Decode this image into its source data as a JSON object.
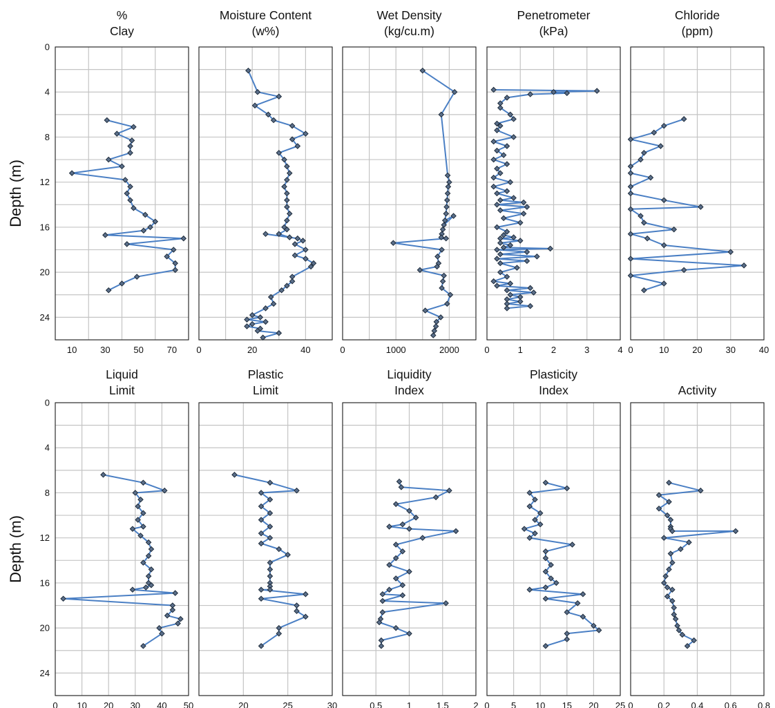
{
  "colors": {
    "series": "#4a7fc4",
    "marker": "#5b6f8a",
    "grid": "#c4c4c4",
    "frame": "#222222"
  },
  "chart_data": [
    {
      "type": "line",
      "title_lines": [
        "%",
        "Clay"
      ],
      "ylabel": "Depth (m)",
      "ylim": [
        0,
        26
      ],
      "yticks": [
        0,
        4,
        8,
        12,
        16,
        20,
        24
      ],
      "invert_y": true,
      "xlim": [
        0,
        80
      ],
      "xgrid": [
        0,
        20,
        40,
        60,
        80
      ],
      "xticklabels": [
        10,
        30,
        50,
        70
      ],
      "x": [
        31,
        47,
        37,
        46,
        45,
        45,
        32,
        40,
        10,
        42,
        45,
        43,
        45,
        47,
        54,
        60,
        57,
        53,
        30,
        77,
        43,
        71,
        67,
        72,
        72,
        49,
        40,
        32
      ],
      "y": [
        6.5,
        7.1,
        7.7,
        8.3,
        8.8,
        9.4,
        10.0,
        10.6,
        11.2,
        11.8,
        12.4,
        13.0,
        13.6,
        14.3,
        14.9,
        15.5,
        16.0,
        16.3,
        16.7,
        17.0,
        17.5,
        18.0,
        18.6,
        19.2,
        19.8,
        20.4,
        21.0,
        21.6
      ]
    },
    {
      "type": "line",
      "title_lines": [
        "Moisture Content",
        "(w%)"
      ],
      "ylabel": "Depth (m)",
      "ylim": [
        0,
        26
      ],
      "yticks": [
        0,
        4,
        8,
        12,
        16,
        20,
        24
      ],
      "invert_y": true,
      "xlim": [
        0,
        50
      ],
      "xgrid": [
        0,
        10,
        20,
        30,
        40,
        50
      ],
      "xticklabels": [
        0,
        20,
        40
      ],
      "x": [
        18.5,
        22,
        30,
        21,
        26,
        28,
        35,
        40,
        35,
        37,
        30,
        32,
        33,
        34,
        33,
        32,
        33,
        33,
        33,
        34,
        33,
        32,
        33,
        30,
        34,
        25,
        37,
        39,
        36,
        40,
        36,
        40,
        43,
        42,
        35,
        35,
        33,
        31,
        27,
        28,
        25,
        20,
        23,
        18,
        25,
        20,
        18,
        23,
        22,
        30,
        24
      ],
      "y": [
        2.1,
        4.0,
        4.4,
        5.2,
        6.0,
        6.5,
        7.0,
        7.7,
        8.2,
        8.8,
        9.4,
        10.0,
        10.6,
        11.2,
        11.8,
        12.4,
        13.0,
        13.6,
        14.2,
        14.8,
        15.4,
        16.0,
        16.2,
        16.6,
        16.9,
        16.6,
        17.0,
        17.2,
        17.5,
        18.0,
        18.5,
        18.8,
        19.2,
        19.5,
        20.4,
        20.8,
        21.2,
        21.6,
        22.2,
        22.8,
        23.2,
        23.8,
        24.0,
        24.2,
        24.4,
        24.6,
        24.8,
        25.0,
        25.2,
        25.4,
        25.8
      ]
    },
    {
      "type": "line",
      "title_lines": [
        "Wet Density",
        "(kg/cu.m)"
      ],
      "ylabel": "Depth (m)",
      "ylim": [
        0,
        26
      ],
      "yticks": [
        0,
        4,
        8,
        12,
        16,
        20,
        24
      ],
      "invert_y": true,
      "xlim": [
        0,
        2500
      ],
      "xgrid": [
        0,
        500,
        1000,
        1500,
        2000,
        2500
      ],
      "xticklabels": [
        0,
        1000,
        2000
      ],
      "x": [
        1500,
        2100,
        1850,
        1970,
        2000,
        1980,
        1970,
        1960,
        1950,
        1940,
        1920,
        2080,
        1900,
        1880,
        1860,
        1850,
        1940,
        950,
        1860,
        1780,
        1800,
        1770,
        1450,
        1900,
        1880,
        1860,
        2020,
        1960,
        1550,
        1840,
        1760,
        1750,
        1720,
        1700
      ],
      "y": [
        2.1,
        4.0,
        6.0,
        11.4,
        12.0,
        12.4,
        13.0,
        13.6,
        14.2,
        14.8,
        15.4,
        15.0,
        15.8,
        16.2,
        16.6,
        16.9,
        17.0,
        17.4,
        18.0,
        18.6,
        19.2,
        19.5,
        19.8,
        20.3,
        20.8,
        21.4,
        22.0,
        22.8,
        23.4,
        24.0,
        24.4,
        24.8,
        25.2,
        25.6
      ]
    },
    {
      "type": "line",
      "title_lines": [
        "Penetrometer",
        "(kPa)"
      ],
      "ylabel": "Depth (m)",
      "ylim": [
        0,
        26
      ],
      "yticks": [
        0,
        4,
        8,
        12,
        16,
        20,
        24
      ],
      "invert_y": true,
      "xlim": [
        0,
        4
      ],
      "xgrid": [
        0,
        1,
        2,
        3,
        4
      ],
      "xticklabels": [
        0,
        1,
        2,
        3,
        4
      ],
      "x": [
        0.2,
        3.3,
        2.0,
        2.4,
        1.3,
        0.6,
        0.4,
        0.4,
        0.7,
        0.8,
        0.3,
        0.4,
        0.3,
        0.8,
        0.2,
        0.6,
        0.3,
        0.5,
        0.2,
        0.6,
        0.3,
        0.4,
        0.2,
        0.7,
        0.2,
        0.6,
        0.3,
        0.8,
        0.4,
        1.1,
        0.3,
        1.2,
        0.4,
        1.1,
        0.5,
        1.0,
        0.3,
        0.6,
        0.5,
        0.8,
        0.4,
        1.0,
        0.4,
        0.7,
        0.5,
        1.9,
        0.3,
        1.2,
        0.4,
        1.5,
        0.3,
        1.2,
        0.4,
        0.9,
        0.4,
        0.6,
        0.2,
        0.7,
        0.3,
        1.3,
        0.6,
        1.4,
        0.7,
        1.0,
        0.6,
        1.0,
        0.6,
        1.3,
        0.6
      ],
      "y": [
        3.8,
        3.9,
        4.0,
        4.1,
        4.2,
        4.5,
        5.0,
        5.4,
        6.0,
        6.4,
        6.8,
        7.0,
        7.4,
        8.0,
        8.4,
        8.8,
        9.2,
        9.6,
        10.0,
        10.4,
        10.8,
        11.2,
        11.6,
        12.0,
        12.4,
        12.8,
        13.0,
        13.4,
        13.6,
        13.8,
        14.0,
        14.2,
        14.5,
        14.8,
        15.2,
        15.6,
        16.0,
        16.4,
        16.7,
        16.9,
        17.0,
        17.2,
        17.4,
        17.6,
        17.8,
        17.9,
        18.0,
        18.2,
        18.4,
        18.6,
        18.8,
        19.0,
        19.2,
        19.6,
        20.0,
        20.4,
        20.8,
        21.0,
        21.2,
        21.4,
        21.6,
        21.8,
        22.0,
        22.2,
        22.4,
        22.6,
        22.8,
        23.0,
        23.2
      ]
    },
    {
      "type": "line",
      "title_lines": [
        "Chloride",
        "(ppm)"
      ],
      "ylabel": "Depth (m)",
      "ylim": [
        0,
        26
      ],
      "yticks": [
        0,
        4,
        8,
        12,
        16,
        20,
        24
      ],
      "invert_y": true,
      "xlim": [
        0,
        40
      ],
      "xgrid": [
        0,
        10,
        20,
        30,
        40
      ],
      "xticklabels": [
        0,
        10,
        20,
        30,
        40
      ],
      "x": [
        16,
        10,
        7,
        0,
        9,
        4,
        3,
        0,
        0,
        6,
        0,
        0,
        10,
        21,
        0,
        3,
        4,
        13,
        0,
        5,
        10,
        30,
        0,
        34,
        16,
        0,
        10,
        4
      ],
      "y": [
        6.4,
        7.0,
        7.6,
        8.2,
        8.8,
        9.4,
        10.0,
        10.6,
        11.2,
        11.6,
        12.4,
        13.0,
        13.6,
        14.2,
        14.4,
        15.0,
        15.6,
        16.2,
        16.6,
        17.0,
        17.6,
        18.2,
        18.8,
        19.4,
        19.8,
        20.3,
        21.0,
        21.6
      ]
    },
    {
      "type": "line",
      "title_lines": [
        "Liquid",
        "Limit"
      ],
      "ylabel": "Depth (m)",
      "ylim": [
        0,
        26
      ],
      "yticks": [
        0,
        4,
        8,
        12,
        16,
        20,
        24
      ],
      "invert_y": true,
      "xlim": [
        0,
        50
      ],
      "xgrid": [
        0,
        10,
        20,
        30,
        40,
        50
      ],
      "xticklabels": [
        0,
        10,
        20,
        30,
        40,
        50
      ],
      "x": [
        18,
        33,
        41,
        30,
        32,
        31,
        33,
        31,
        33,
        29,
        32,
        35,
        36,
        35,
        33,
        36,
        35,
        35,
        36,
        34,
        29,
        45,
        3,
        44,
        44,
        42,
        47,
        46,
        39,
        40,
        33
      ],
      "y": [
        6.4,
        7.1,
        7.8,
        8.0,
        8.6,
        9.2,
        9.8,
        10.4,
        11.0,
        11.2,
        11.8,
        12.4,
        13.0,
        13.6,
        14.2,
        14.8,
        15.4,
        16.0,
        16.2,
        16.4,
        16.6,
        16.9,
        17.4,
        18.0,
        18.4,
        18.9,
        19.2,
        19.6,
        20.0,
        20.5,
        21.6
      ]
    },
    {
      "type": "line",
      "title_lines": [
        "Plastic",
        "Limit"
      ],
      "ylabel": "Depth (m)",
      "ylim": [
        0,
        26
      ],
      "yticks": [
        0,
        4,
        8,
        12,
        16,
        20,
        24
      ],
      "invert_y": true,
      "xlim": [
        15,
        30
      ],
      "xgrid": [
        15,
        20,
        25,
        30
      ],
      "xticklabels": [
        20,
        25,
        30
      ],
      "x": [
        19,
        23,
        26,
        22,
        23,
        22,
        23,
        22,
        23,
        22,
        23,
        22,
        24,
        25,
        23,
        23,
        23,
        23,
        23,
        23,
        22,
        27,
        22,
        26,
        26,
        27,
        24,
        24,
        22
      ],
      "y": [
        6.4,
        7.1,
        7.8,
        8.0,
        8.6,
        9.2,
        9.8,
        10.4,
        11.0,
        11.6,
        12.0,
        12.5,
        13.0,
        13.5,
        14.2,
        14.8,
        15.4,
        16.0,
        16.3,
        16.6,
        16.6,
        17.0,
        17.4,
        18.0,
        18.5,
        19.0,
        20.0,
        20.5,
        21.6
      ]
    },
    {
      "type": "line",
      "title_lines": [
        "Liquidity",
        "Index"
      ],
      "ylabel": "Depth (m)",
      "ylim": [
        0,
        26
      ],
      "yticks": [
        0,
        4,
        8,
        12,
        16,
        20,
        24
      ],
      "invert_y": true,
      "xlim": [
        0,
        2
      ],
      "xgrid": [
        0,
        0.5,
        1,
        1.5,
        2
      ],
      "xticklabels": [
        0.5,
        1,
        1.5,
        2
      ],
      "x": [
        0.85,
        0.88,
        1.6,
        1.4,
        0.8,
        1.0,
        1.1,
        0.9,
        0.7,
        1.0,
        1.7,
        1.2,
        0.8,
        0.9,
        0.8,
        0.7,
        1.0,
        0.8,
        0.9,
        0.7,
        0.6,
        0.9,
        0.6,
        1.55,
        0.6,
        0.57,
        0.55,
        0.8,
        1.0,
        0.58,
        0.58
      ],
      "y": [
        7.0,
        7.5,
        7.8,
        8.4,
        9.0,
        9.6,
        10.2,
        10.8,
        11.0,
        11.2,
        11.4,
        12.0,
        12.6,
        13.2,
        13.8,
        14.4,
        15.0,
        15.6,
        16.2,
        16.6,
        17.0,
        17.1,
        17.6,
        17.8,
        18.6,
        19.2,
        19.5,
        20.0,
        20.5,
        21.1,
        21.6
      ]
    },
    {
      "type": "line",
      "title_lines": [
        "Plasticity",
        "Index"
      ],
      "ylabel": "Depth (m)",
      "ylim": [
        0,
        26
      ],
      "yticks": [
        0,
        4,
        8,
        12,
        16,
        20,
        24
      ],
      "invert_y": true,
      "xlim": [
        0,
        25
      ],
      "xgrid": [
        0,
        5,
        10,
        15,
        20,
        25
      ],
      "xticklabels": [
        0,
        5,
        10,
        15,
        20,
        25
      ],
      "x": [
        11,
        15,
        8,
        9,
        8,
        10,
        9,
        10,
        7,
        9,
        8,
        16,
        11,
        11,
        12,
        11,
        12,
        13,
        11,
        8,
        18,
        11,
        17,
        15,
        18,
        20,
        21,
        15,
        15,
        11
      ],
      "y": [
        7.1,
        7.6,
        8.0,
        8.6,
        9.2,
        9.8,
        10.4,
        10.8,
        11.2,
        11.6,
        12.0,
        12.6,
        13.2,
        13.8,
        14.4,
        15.0,
        15.6,
        16.0,
        16.4,
        16.6,
        17.0,
        17.4,
        17.8,
        18.6,
        19.0,
        19.8,
        20.2,
        20.5,
        21.0,
        21.6
      ]
    },
    {
      "type": "line",
      "title_lines": [
        "",
        "Activity"
      ],
      "ylabel": "Depth (m)",
      "ylim": [
        0,
        26
      ],
      "yticks": [
        0,
        4,
        8,
        12,
        16,
        20,
        24
      ],
      "invert_y": true,
      "xlim": [
        0,
        0.8
      ],
      "xgrid": [
        0,
        0.2,
        0.4,
        0.6,
        0.8
      ],
      "xticklabels": [
        0,
        0.2,
        0.4,
        0.6,
        0.8
      ],
      "x": [
        0.23,
        0.42,
        0.17,
        0.23,
        0.17,
        0.22,
        0.24,
        0.24,
        0.24,
        0.25,
        0.63,
        0.2,
        0.35,
        0.3,
        0.24,
        0.25,
        0.23,
        0.21,
        0.2,
        0.22,
        0.25,
        0.22,
        0.25,
        0.26,
        0.26,
        0.27,
        0.28,
        0.29,
        0.31,
        0.38,
        0.34
      ],
      "y": [
        7.1,
        7.8,
        8.2,
        8.8,
        9.4,
        10.0,
        10.4,
        11.0,
        11.2,
        11.4,
        11.4,
        12.0,
        12.4,
        13.0,
        13.4,
        14.2,
        14.8,
        15.4,
        16.0,
        16.4,
        16.6,
        17.2,
        17.6,
        18.2,
        18.8,
        19.2,
        19.8,
        20.2,
        20.6,
        21.1,
        21.6
      ]
    }
  ]
}
